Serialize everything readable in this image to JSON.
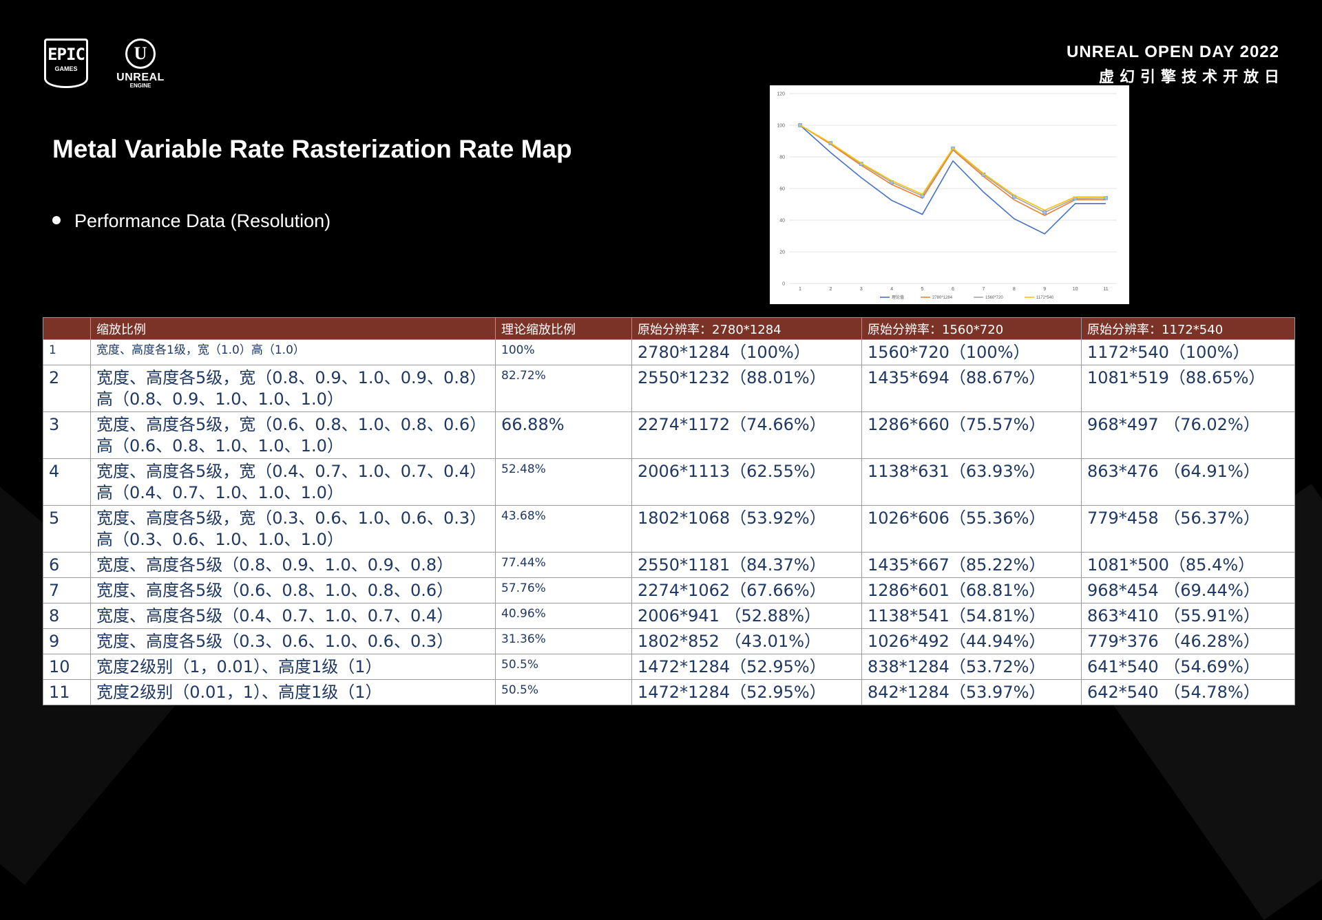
{
  "header": {
    "epic_logo": {
      "line1": "EPIC",
      "line2": "GAMES"
    },
    "ue_logo": {
      "glyph": "U",
      "line1": "UNREAL",
      "line2": "ENGINE"
    },
    "event_title_en": "UNREAL OPEN DAY 2022",
    "event_title_cn": "虚幻引擎技术开放日"
  },
  "slide": {
    "title": "Metal Variable Rate Rasterization Rate Map",
    "bullet": "Performance Data (Resolution)"
  },
  "chart_data": {
    "type": "line",
    "title": "",
    "xlabel": "",
    "ylabel": "",
    "x": [
      1,
      2,
      3,
      4,
      5,
      6,
      7,
      8,
      9,
      10,
      11
    ],
    "ylim": [
      0,
      120
    ],
    "yticks": [
      0,
      20,
      40,
      60,
      80,
      100,
      120
    ],
    "grid": true,
    "legend_position": "bottom",
    "series": [
      {
        "name": "理论值",
        "color": "#4472c4",
        "values": [
          100,
          82.72,
          66.88,
          52.48,
          43.68,
          77.44,
          57.76,
          40.96,
          31.36,
          50.5,
          50.5
        ]
      },
      {
        "name": "2780*1284",
        "color": "#ed7d31",
        "values": [
          100,
          88.01,
          74.66,
          62.55,
          53.92,
          84.37,
          67.66,
          52.88,
          43.01,
          52.95,
          52.95
        ]
      },
      {
        "name": "1560*720",
        "color": "#a5a5a5",
        "values": [
          100,
          88.67,
          75.57,
          63.93,
          55.36,
          85.22,
          68.81,
          54.81,
          44.94,
          53.72,
          53.97
        ]
      },
      {
        "name": "1172*540",
        "color": "#ffc000",
        "values": [
          100,
          88.65,
          76.02,
          64.91,
          56.37,
          85.4,
          69.44,
          55.91,
          46.28,
          54.69,
          54.78
        ]
      }
    ]
  },
  "table": {
    "headers": [
      "",
      "缩放比例",
      "理论缩放比例",
      "原始分辨率：2780*1284",
      "原始分辨率：1560*720",
      "原始分辨率：1172*540"
    ],
    "rows": [
      [
        "1",
        "宽度、高度各1级，宽（1.0）高（1.0）",
        "100%",
        "2780*1284（100%）",
        "1560*720（100%）",
        "1172*540（100%）"
      ],
      [
        "2",
        "宽度、高度各5级，宽（0.8、0.9、1.0、0.9、0.8）高（0.8、0.9、1.0、1.0、1.0）",
        "82.72%",
        "2550*1232（88.01%）",
        "1435*694（88.67%）",
        "1081*519（88.65%）"
      ],
      [
        "3",
        "宽度、高度各5级，宽（0.6、0.8、1.0、0.8、0.6）高（0.6、0.8、1.0、1.0、1.0）",
        "66.88%",
        "2274*1172（74.66%）",
        "1286*660（75.57%）",
        "968*497 （76.02%）"
      ],
      [
        "4",
        "宽度、高度各5级，宽（0.4、0.7、1.0、0.7、0.4）高（0.4、0.7、1.0、1.0、1.0）",
        "52.48%",
        "2006*1113（62.55%）",
        "1138*631（63.93%）",
        "863*476 （64.91%）"
      ],
      [
        "5",
        "宽度、高度各5级，宽（0.3、0.6、1.0、0.6、0.3）高（0.3、0.6、1.0、1.0、1.0）",
        "43.68%",
        "1802*1068（53.92%）",
        "1026*606（55.36%）",
        "779*458 （56.37%）"
      ],
      [
        "6",
        "宽度、高度各5级（0.8、0.9、1.0、0.9、0.8）",
        "77.44%",
        "2550*1181（84.37%）",
        "1435*667（85.22%）",
        "1081*500（85.4%）"
      ],
      [
        "7",
        "宽度、高度各5级（0.6、0.8、1.0、0.8、0.6）",
        "57.76%",
        "2274*1062（67.66%）",
        "1286*601（68.81%）",
        "968*454 （69.44%）"
      ],
      [
        "8",
        "宽度、高度各5级（0.4、0.7、1.0、0.7、0.4）",
        "40.96%",
        "2006*941 （52.88%）",
        "1138*541（54.81%）",
        "863*410 （55.91%）"
      ],
      [
        "9",
        "宽度、高度各5级（0.3、0.6、1.0、0.6、0.3）",
        "31.36%",
        "1802*852 （43.01%）",
        "1026*492（44.94%）",
        "779*376 （46.28%）"
      ],
      [
        "10",
        "宽度2级别（1，0.01）、高度1级（1）",
        "50.5%",
        "1472*1284（52.95%）",
        "838*1284（53.72%）",
        "641*540 （54.69%）"
      ],
      [
        "11",
        "宽度2级别（0.01，1）、高度1级（1）",
        "50.5%",
        "1472*1284（52.95%）",
        "842*1284（53.97%）",
        "642*540 （54.78%）"
      ]
    ]
  }
}
